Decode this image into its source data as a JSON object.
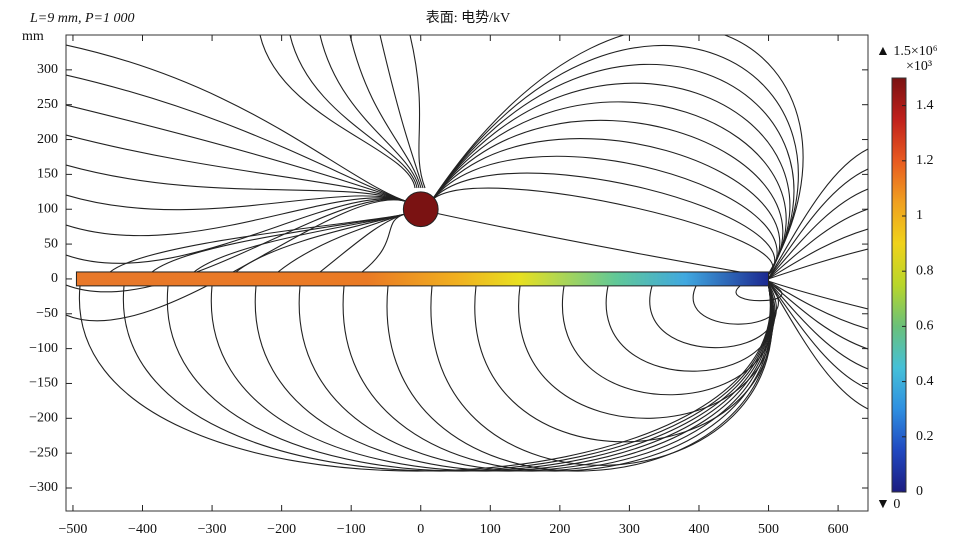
{
  "chart_data": {
    "type": "field",
    "title": "表面: 电势/kV",
    "annotation": "L=9 mm, P=1 000",
    "ylabel": "mm",
    "xlim": [
      -510,
      643
    ],
    "ylim": [
      -333,
      350
    ],
    "xticks": [
      {
        "value": -500,
        "label": "−500"
      },
      {
        "value": -400,
        "label": "−400"
      },
      {
        "value": -300,
        "label": "−300"
      },
      {
        "value": -200,
        "label": "−200"
      },
      {
        "value": -100,
        "label": "−100"
      },
      0,
      100,
      200,
      300,
      400,
      500,
      600
    ],
    "yticks": [
      {
        "value": -300,
        "label": "−300"
      },
      {
        "value": -250,
        "label": "−250"
      },
      {
        "value": -200,
        "label": "−200"
      },
      {
        "value": -150,
        "label": "−150"
      },
      {
        "value": -100,
        "label": "−100"
      },
      {
        "value": -50,
        "label": "−50"
      },
      0,
      50,
      100,
      150,
      200,
      250,
      300
    ],
    "conductor": {
      "x": [
        -495,
        500
      ],
      "y": [
        -10,
        10
      ]
    },
    "sphere": {
      "center": [
        0,
        100
      ],
      "radius": 25,
      "color": "#7a1212"
    },
    "colorbar": {
      "clim": [
        0,
        1.5
      ],
      "ticks": [
        0,
        0.2,
        0.4,
        0.6,
        0.8,
        1,
        1.2,
        1.4
      ],
      "unit": "×10³",
      "max_label": "▲ 1.5×10⁶",
      "min_label": "▼ 0",
      "colormap": [
        "#1c1c80",
        "#2048c0",
        "#2f8fe0",
        "#45c0d8",
        "#6ac07a",
        "#b8d62a",
        "#f0d21a",
        "#f0a020",
        "#e85a20",
        "#c0201c",
        "#7a1212"
      ]
    }
  }
}
